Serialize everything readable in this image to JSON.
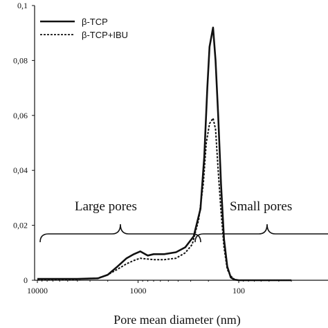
{
  "chart_data": {
    "type": "line",
    "title": "",
    "xlabel": "Pore mean diameter (nm)",
    "ylabel": "",
    "x_scale": "log",
    "x_reversed": true,
    "xlim": [
      10000,
      30
    ],
    "ylim": [
      0,
      0.1
    ],
    "x_ticks": [
      {
        "value": 10000,
        "label": "10000"
      },
      {
        "value": 1000,
        "label": "1000"
      },
      {
        "value": 100,
        "label": "100"
      }
    ],
    "y_ticks": [
      {
        "value": 0,
        "label": "0"
      },
      {
        "value": 0.02,
        "label": "0,02"
      },
      {
        "value": 0.04,
        "label": "0,04"
      },
      {
        "value": 0.06,
        "label": "0,06"
      },
      {
        "value": 0.08,
        "label": "0,08"
      },
      {
        "value": 0.1,
        "label": "0,1"
      }
    ],
    "legend": {
      "placement": "top-left"
    },
    "annotations": [
      {
        "text": "Large pores"
      },
      {
        "text": "Small  pores"
      }
    ],
    "series": [
      {
        "name": "β-TCP",
        "style": "solid",
        "color": "#111111",
        "points": [
          [
            10000,
            0.0005
          ],
          [
            6000,
            0.0005
          ],
          [
            4000,
            0.0005
          ],
          [
            2500,
            0.0007
          ],
          [
            2000,
            0.002
          ],
          [
            1600,
            0.005
          ],
          [
            1300,
            0.008
          ],
          [
            1100,
            0.0095
          ],
          [
            950,
            0.0105
          ],
          [
            850,
            0.0095
          ],
          [
            800,
            0.009
          ],
          [
            700,
            0.0095
          ],
          [
            550,
            0.0095
          ],
          [
            420,
            0.0102
          ],
          [
            340,
            0.012
          ],
          [
            280,
            0.016
          ],
          [
            240,
            0.026
          ],
          [
            220,
            0.045
          ],
          [
            205,
            0.07
          ],
          [
            195,
            0.085
          ],
          [
            180,
            0.092
          ],
          [
            170,
            0.08
          ],
          [
            160,
            0.06
          ],
          [
            150,
            0.035
          ],
          [
            140,
            0.015
          ],
          [
            130,
            0.005
          ],
          [
            120,
            0.001
          ],
          [
            110,
            0.0002
          ],
          [
            100,
            0
          ],
          [
            30,
            0
          ]
        ]
      },
      {
        "name": "β-TCP+IBU",
        "style": "dashed",
        "color": "#111111",
        "points": [
          [
            10000,
            0.0002
          ],
          [
            6000,
            0.0003
          ],
          [
            4000,
            0.0004
          ],
          [
            2500,
            0.0008
          ],
          [
            2000,
            0.002
          ],
          [
            1600,
            0.004
          ],
          [
            1300,
            0.006
          ],
          [
            1100,
            0.0072
          ],
          [
            950,
            0.008
          ],
          [
            850,
            0.0078
          ],
          [
            700,
            0.0075
          ],
          [
            550,
            0.0075
          ],
          [
            420,
            0.008
          ],
          [
            340,
            0.01
          ],
          [
            290,
            0.013
          ],
          [
            250,
            0.022
          ],
          [
            225,
            0.035
          ],
          [
            210,
            0.05
          ],
          [
            195,
            0.057
          ],
          [
            180,
            0.059
          ],
          [
            170,
            0.055
          ],
          [
            160,
            0.04
          ],
          [
            150,
            0.025
          ],
          [
            140,
            0.012
          ],
          [
            130,
            0.004
          ],
          [
            120,
            0.0015
          ],
          [
            110,
            0.0003
          ],
          [
            100,
            0
          ],
          [
            30,
            0
          ]
        ]
      }
    ]
  }
}
